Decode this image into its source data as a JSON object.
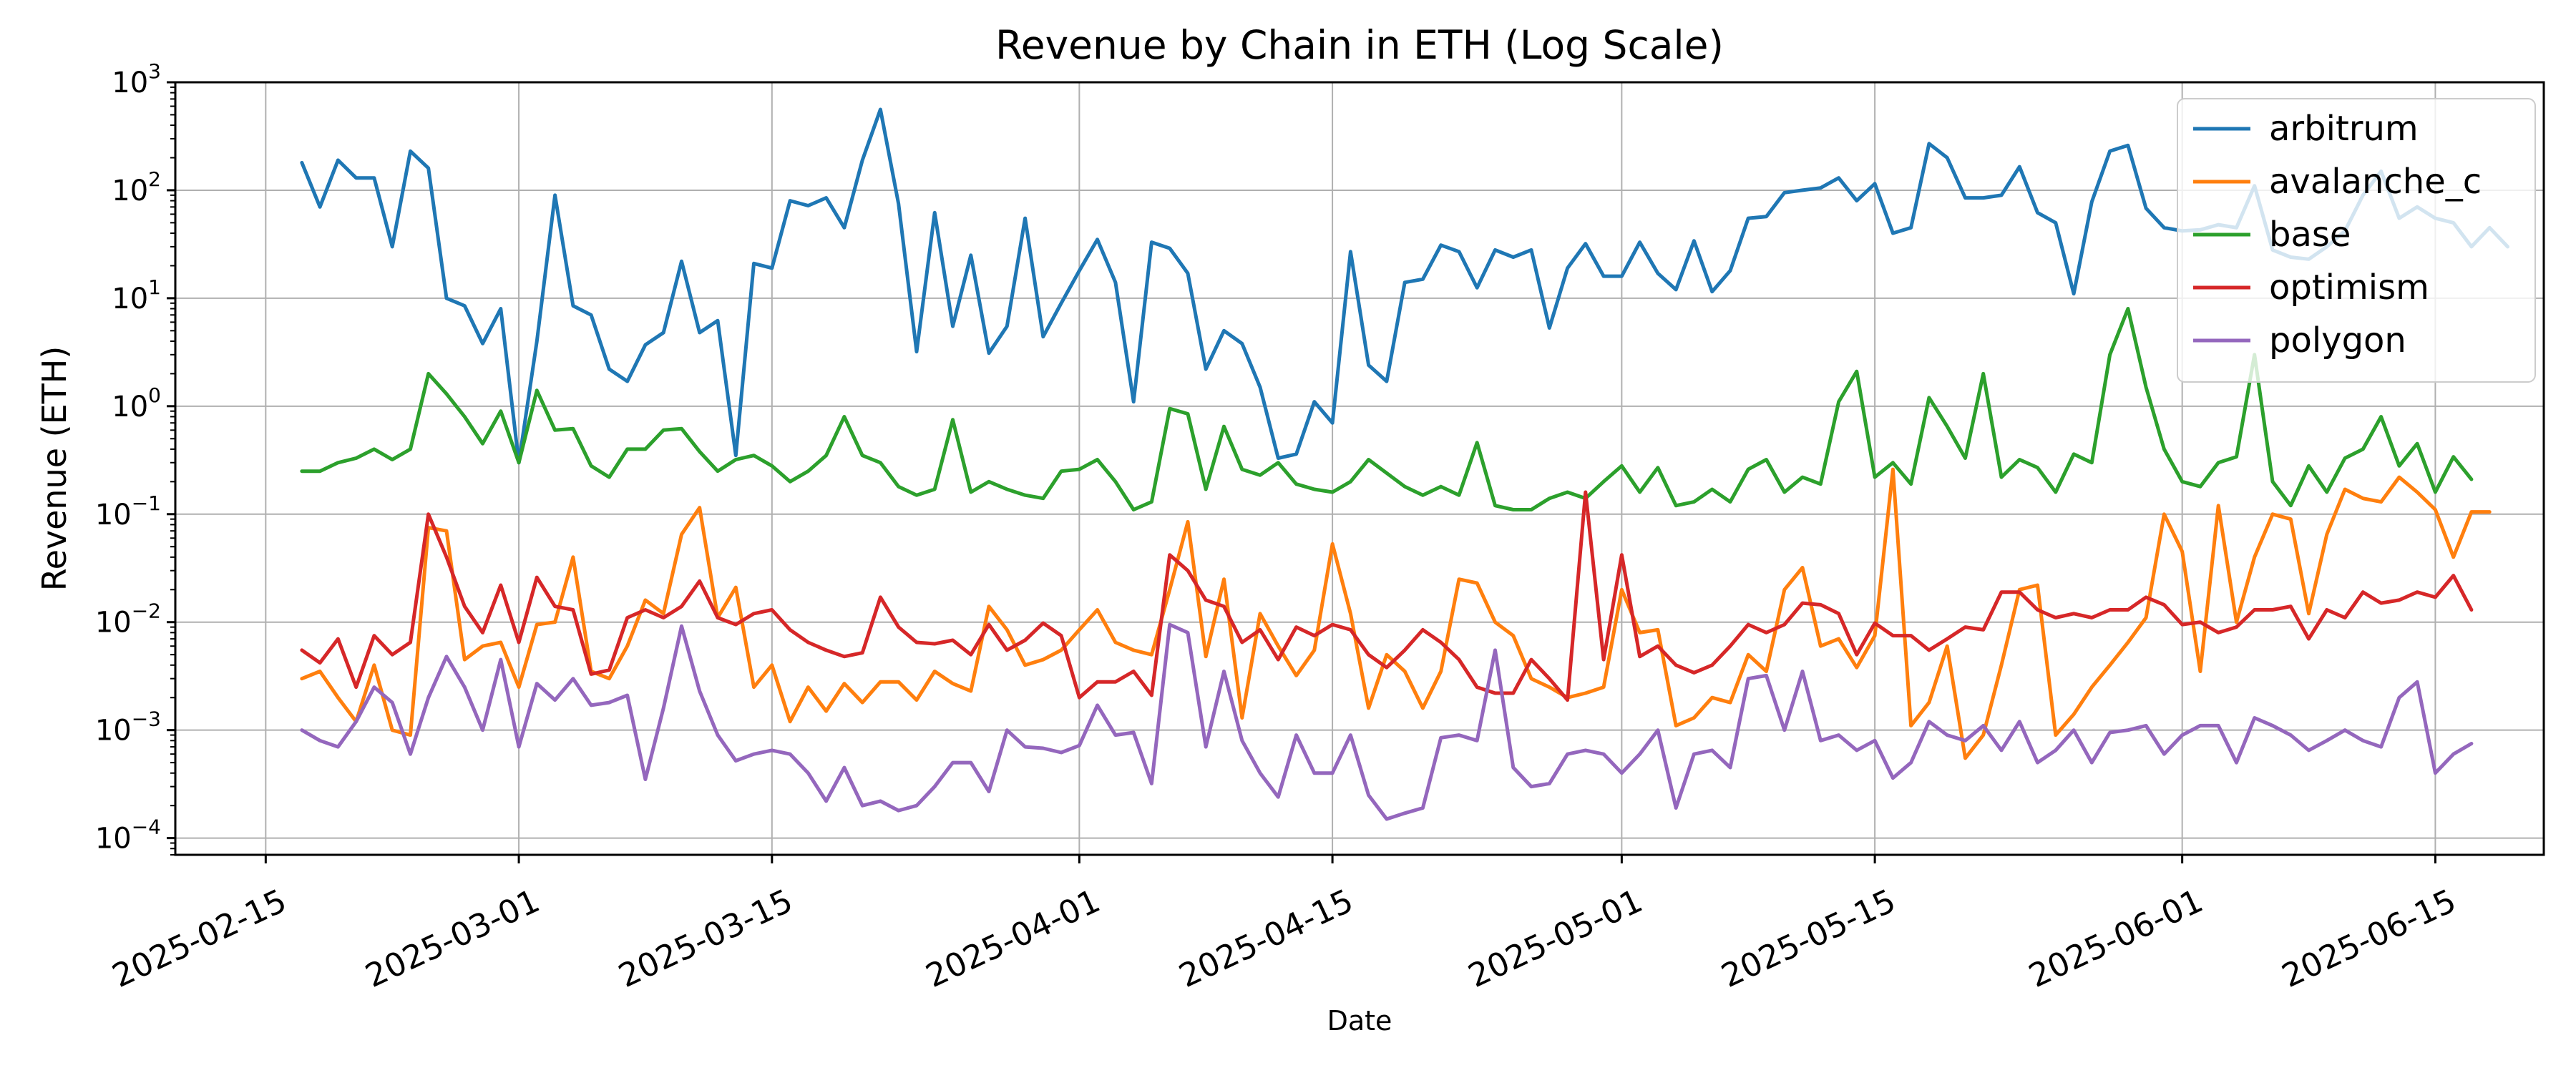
{
  "chart_data": {
    "type": "line",
    "title": "Revenue by Chain in ETH (Log Scale)",
    "xlabel": "Date",
    "ylabel": "Revenue (ETH)",
    "yscale": "log",
    "ylim": [
      7e-05,
      1000
    ],
    "xlim": [
      "2025-02-10",
      "2025-06-21"
    ],
    "grid": true,
    "legend_position": "top-right",
    "x_start": "2025-02-17",
    "x_step_days": 1,
    "x_ticks": [
      "2025-02-15",
      "2025-03-01",
      "2025-03-15",
      "2025-04-01",
      "2025-04-15",
      "2025-05-01",
      "2025-05-15",
      "2025-06-01",
      "2025-06-15"
    ],
    "y_ticks": [
      {
        "value": 0.0001,
        "base": "10",
        "exp": "−4"
      },
      {
        "value": 0.001,
        "base": "10",
        "exp": "−3"
      },
      {
        "value": 0.01,
        "base": "10",
        "exp": "−2"
      },
      {
        "value": 0.1,
        "base": "10",
        "exp": "−1"
      },
      {
        "value": 1,
        "base": "10",
        "exp": "0"
      },
      {
        "value": 10,
        "base": "10",
        "exp": "1"
      },
      {
        "value": 100,
        "base": "10",
        "exp": "2"
      },
      {
        "value": 1000,
        "base": "10",
        "exp": "3"
      }
    ],
    "series": [
      {
        "name": "arbitrum",
        "color": "#1f77b4",
        "values": [
          180,
          70,
          190,
          130,
          130,
          30,
          230,
          160,
          10,
          8.5,
          3.8,
          8,
          0.3,
          4,
          90,
          8.5,
          7,
          2.2,
          1.7,
          3.7,
          4.8,
          22,
          4.8,
          6.2,
          0.35,
          21,
          19,
          80,
          72,
          85,
          45,
          190,
          560,
          75,
          3.2,
          62,
          5.5,
          25,
          3.1,
          5.5,
          55,
          4.4,
          9,
          18,
          35,
          14,
          1.1,
          33,
          29,
          17,
          2.2,
          5,
          3.8,
          1.5,
          0.33,
          0.36,
          1.1,
          0.7,
          27,
          2.4,
          1.7,
          14,
          15,
          31,
          27,
          12.5,
          28,
          24,
          28,
          5.3,
          19,
          32,
          16,
          16,
          33,
          17,
          12,
          34,
          11.5,
          18,
          55,
          57,
          95,
          100,
          105,
          130,
          80,
          115,
          40,
          45,
          270,
          200,
          85,
          85,
          90,
          165,
          62,
          50,
          11,
          78,
          230,
          260,
          68,
          45,
          42,
          43,
          48,
          45,
          110,
          28,
          24,
          23,
          30,
          42,
          90,
          150,
          55,
          70,
          55,
          50,
          30,
          45,
          30
        ]
      },
      {
        "name": "avalanche_c",
        "color": "#ff7f0e",
        "values": [
          0.003,
          0.0035,
          0.002,
          0.0012,
          0.004,
          0.001,
          0.0009,
          0.075,
          0.07,
          0.0045,
          0.006,
          0.0065,
          0.0025,
          0.0095,
          0.01,
          0.04,
          0.0035,
          0.003,
          0.006,
          0.016,
          0.012,
          0.065,
          0.115,
          0.011,
          0.021,
          0.0025,
          0.004,
          0.0012,
          0.0025,
          0.0015,
          0.0027,
          0.0018,
          0.0028,
          0.0028,
          0.0019,
          0.0035,
          0.0027,
          0.0023,
          0.014,
          0.0085,
          0.004,
          0.0045,
          0.0055,
          0.0085,
          0.013,
          0.0065,
          0.0055,
          0.005,
          0.02,
          0.085,
          0.0048,
          0.025,
          0.0013,
          0.012,
          0.006,
          0.0032,
          0.0055,
          0.053,
          0.012,
          0.0016,
          0.005,
          0.0035,
          0.0016,
          0.0035,
          0.025,
          0.023,
          0.01,
          0.0075,
          0.003,
          0.0025,
          0.002,
          0.0022,
          0.0025,
          0.02,
          0.008,
          0.0085,
          0.0011,
          0.0013,
          0.002,
          0.0018,
          0.005,
          0.0035,
          0.02,
          0.032,
          0.006,
          0.007,
          0.0038,
          0.0075,
          0.26,
          0.0011,
          0.0018,
          0.006,
          0.00055,
          0.0009,
          0.004,
          0.02,
          0.022,
          0.0009,
          0.0014,
          0.0025,
          0.004,
          0.0065,
          0.011,
          0.1,
          0.045,
          0.0035,
          0.12,
          0.01,
          0.04,
          0.1,
          0.09,
          0.012,
          0.065,
          0.17,
          0.14,
          0.13,
          0.22,
          0.16,
          0.11,
          0.04,
          0.105,
          0.105
        ]
      },
      {
        "name": "base",
        "color": "#2ca02c",
        "values": [
          0.25,
          0.25,
          0.3,
          0.33,
          0.4,
          0.32,
          0.4,
          2,
          1.3,
          0.8,
          0.45,
          0.9,
          0.3,
          1.4,
          0.6,
          0.62,
          0.28,
          0.22,
          0.4,
          0.4,
          0.6,
          0.62,
          0.38,
          0.25,
          0.32,
          0.35,
          0.28,
          0.2,
          0.25,
          0.35,
          0.8,
          0.35,
          0.3,
          0.18,
          0.15,
          0.17,
          0.75,
          0.16,
          0.2,
          0.17,
          0.15,
          0.14,
          0.25,
          0.26,
          0.32,
          0.2,
          0.11,
          0.13,
          0.95,
          0.85,
          0.17,
          0.65,
          0.26,
          0.23,
          0.3,
          0.19,
          0.17,
          0.16,
          0.2,
          0.32,
          0.24,
          0.18,
          0.15,
          0.18,
          0.15,
          0.46,
          0.12,
          0.11,
          0.11,
          0.14,
          0.16,
          0.14,
          0.2,
          0.28,
          0.16,
          0.27,
          0.12,
          0.13,
          0.17,
          0.13,
          0.26,
          0.32,
          0.16,
          0.22,
          0.19,
          1.1,
          2.1,
          0.22,
          0.3,
          0.19,
          1.2,
          0.65,
          0.33,
          2,
          0.22,
          0.32,
          0.27,
          0.16,
          0.36,
          0.3,
          3,
          8,
          1.5,
          0.4,
          0.2,
          0.18,
          0.3,
          0.34,
          3,
          0.2,
          0.12,
          0.28,
          0.16,
          0.33,
          0.4,
          0.8,
          0.28,
          0.45,
          0.16,
          0.34,
          0.21
        ]
      },
      {
        "name": "optimism",
        "color": "#d62728",
        "values": [
          0.0055,
          0.0042,
          0.007,
          0.0025,
          0.0075,
          0.005,
          0.0065,
          0.1,
          0.04,
          0.014,
          0.008,
          0.022,
          0.0065,
          0.026,
          0.014,
          0.013,
          0.0033,
          0.0036,
          0.011,
          0.013,
          0.011,
          0.014,
          0.024,
          0.011,
          0.0095,
          0.012,
          0.013,
          0.0085,
          0.0065,
          0.0055,
          0.0048,
          0.0052,
          0.017,
          0.009,
          0.0065,
          0.0063,
          0.0068,
          0.005,
          0.0095,
          0.0055,
          0.0068,
          0.0098,
          0.0075,
          0.002,
          0.0028,
          0.0028,
          0.0035,
          0.0021,
          0.042,
          0.03,
          0.016,
          0.014,
          0.0065,
          0.0085,
          0.0045,
          0.009,
          0.0075,
          0.0095,
          0.0085,
          0.005,
          0.0038,
          0.0055,
          0.0085,
          0.0065,
          0.0045,
          0.0025,
          0.0022,
          0.0022,
          0.0045,
          0.003,
          0.0019,
          0.16,
          0.0045,
          0.042,
          0.0048,
          0.006,
          0.004,
          0.0034,
          0.004,
          0.006,
          0.0095,
          0.008,
          0.0095,
          0.015,
          0.0145,
          0.012,
          0.005,
          0.0098,
          0.0075,
          0.0075,
          0.0055,
          0.007,
          0.009,
          0.0085,
          0.019,
          0.019,
          0.013,
          0.011,
          0.012,
          0.011,
          0.013,
          0.013,
          0.017,
          0.0145,
          0.0095,
          0.01,
          0.008,
          0.009,
          0.013,
          0.013,
          0.014,
          0.007,
          0.013,
          0.011,
          0.019,
          0.015,
          0.016,
          0.019,
          0.017,
          0.027,
          0.013
        ]
      },
      {
        "name": "polygon",
        "color": "#9467bd",
        "values": [
          0.001,
          0.0008,
          0.0007,
          0.0012,
          0.0025,
          0.0018,
          0.0006,
          0.002,
          0.0048,
          0.0025,
          0.001,
          0.0045,
          0.0007,
          0.0027,
          0.0019,
          0.003,
          0.0017,
          0.0018,
          0.0021,
          0.00035,
          0.0016,
          0.0092,
          0.0023,
          0.0009,
          0.00052,
          0.0006,
          0.00065,
          0.0006,
          0.0004,
          0.00022,
          0.00045,
          0.0002,
          0.00022,
          0.00018,
          0.0002,
          0.0003,
          0.0005,
          0.0005,
          0.00027,
          0.001,
          0.0007,
          0.00068,
          0.00062,
          0.00072,
          0.0017,
          0.0009,
          0.00095,
          0.00032,
          0.0095,
          0.008,
          0.0007,
          0.0035,
          0.0008,
          0.0004,
          0.00024,
          0.0009,
          0.0004,
          0.0004,
          0.0009,
          0.00025,
          0.00015,
          0.00017,
          0.00019,
          0.00085,
          0.0009,
          0.0008,
          0.0055,
          0.00045,
          0.0003,
          0.00032,
          0.0006,
          0.00065,
          0.0006,
          0.0004,
          0.0006,
          0.001,
          0.00019,
          0.0006,
          0.00065,
          0.00045,
          0.003,
          0.0032,
          0.001,
          0.0035,
          0.0008,
          0.0009,
          0.00065,
          0.0008,
          0.00036,
          0.0005,
          0.0012,
          0.0009,
          0.0008,
          0.0011,
          0.00065,
          0.0012,
          0.0005,
          0.00065,
          0.001,
          0.0005,
          0.00095,
          0.001,
          0.0011,
          0.0006,
          0.0009,
          0.0011,
          0.0011,
          0.0005,
          0.0013,
          0.0011,
          0.0009,
          0.00065,
          0.0008,
          0.001,
          0.0008,
          0.0007,
          0.002,
          0.0028,
          0.0004,
          0.0006,
          0.00075
        ]
      }
    ]
  }
}
